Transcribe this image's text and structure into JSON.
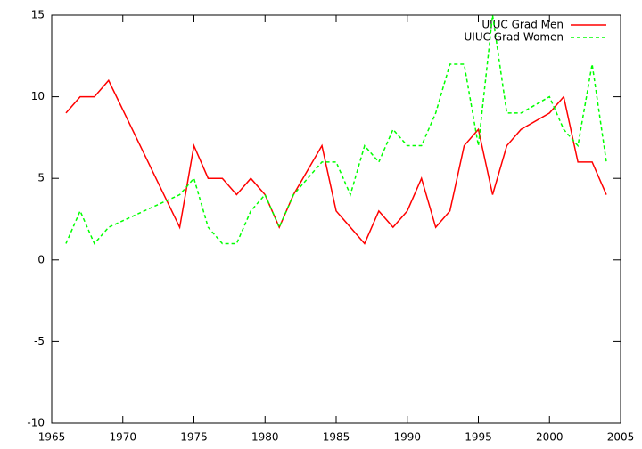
{
  "chart_data": {
    "type": "line",
    "x": [
      1966,
      1967,
      1968,
      1969,
      1974,
      1975,
      1976,
      1977,
      1978,
      1979,
      1980,
      1981,
      1982,
      1984,
      1985,
      1986,
      1987,
      1988,
      1989,
      1990,
      1991,
      1992,
      1993,
      1994,
      1995,
      1996,
      1997,
      1998,
      2000,
      2001,
      2002,
      2003,
      2004
    ],
    "series": [
      {
        "name": "UIUC Grad Men",
        "color": "#ff0000",
        "dash": false,
        "values": [
          9,
          10,
          10,
          11,
          2,
          7,
          5,
          5,
          4,
          5,
          4,
          2,
          4,
          7,
          3,
          2,
          1,
          3,
          2,
          3,
          5,
          2,
          3,
          7,
          8,
          4,
          7,
          8,
          9,
          10,
          6,
          6,
          4
        ]
      },
      {
        "name": "UIUC Grad Women",
        "color": "#00ff00",
        "dash": true,
        "values": [
          1,
          3,
          1,
          2,
          4,
          5,
          2,
          1,
          1,
          3,
          4,
          2,
          4,
          6,
          6,
          4,
          7,
          6,
          8,
          7,
          7,
          9,
          12,
          12,
          7,
          15,
          9,
          9,
          10,
          8,
          7,
          12,
          6
        ]
      }
    ],
    "xlim": [
      1965,
      2005
    ],
    "xticks": [
      1965,
      1970,
      1975,
      1980,
      1985,
      1990,
      1995,
      2000,
      2005
    ],
    "ylim": [
      -10,
      15
    ],
    "yticks": [
      -10,
      -5,
      0,
      5,
      10,
      15
    ],
    "legend": "top-right"
  }
}
